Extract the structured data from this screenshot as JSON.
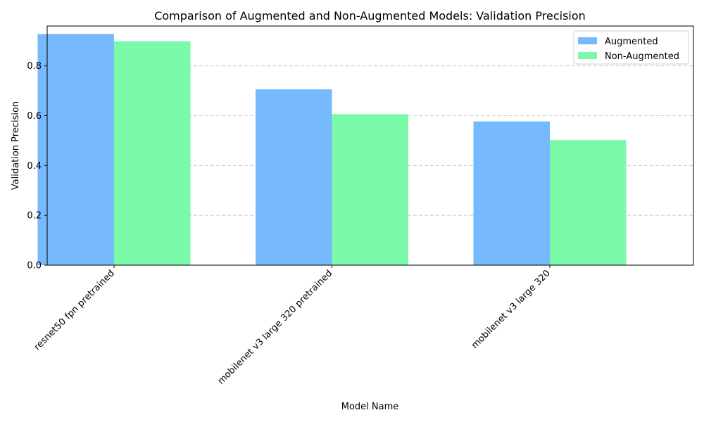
{
  "chart_data": {
    "type": "bar",
    "title": "Comparison of Augmented and Non-Augmented Models: Validation Precision",
    "xlabel": "Model Name",
    "ylabel": "Validation Precision",
    "categories": [
      "resnet50 fpn pretrained",
      "mobilenet v3 large 320 pretrained",
      "mobilenet v3 large 320"
    ],
    "series": [
      {
        "name": "Augmented",
        "color": "#76b9fc",
        "values": [
          0.928,
          0.706,
          0.577
        ]
      },
      {
        "name": "Non-Augmented",
        "color": "#7afaa8",
        "values": [
          0.899,
          0.606,
          0.502
        ]
      }
    ],
    "ylim": [
      0,
      0.96
    ],
    "yticks": [
      0.0,
      0.2,
      0.4,
      0.6,
      0.8
    ],
    "ytick_labels": [
      "0.0",
      "0.2",
      "0.4",
      "0.6",
      "0.8"
    ],
    "grid": "y-dashed",
    "legend_position": "top-right"
  }
}
